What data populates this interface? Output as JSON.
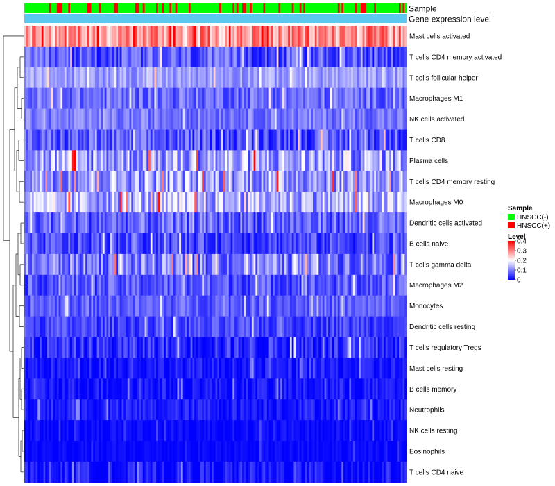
{
  "chart_data": {
    "type": "heatmap",
    "title": "",
    "annotations": [
      {
        "name": "Sample",
        "legend_title": "Sample",
        "levels": [
          {
            "label": "HNSCC(-)",
            "color": "#00FF00"
          },
          {
            "label": "HNSCC(+)",
            "color": "#FF0000"
          }
        ]
      },
      {
        "name": "Gene expression level",
        "color": "#5BC8F0"
      }
    ],
    "rows": [
      {
        "label": "Mast cells activated",
        "mean": 0.28,
        "spread": 0.08
      },
      {
        "label": "T cells CD4 memory activated",
        "mean": 0.06,
        "spread": 0.06
      },
      {
        "label": "T cells follicular helper",
        "mean": 0.12,
        "spread": 0.04
      },
      {
        "label": "Macrophages M1",
        "mean": 0.08,
        "spread": 0.05
      },
      {
        "label": "NK cells activated",
        "mean": 0.09,
        "spread": 0.04
      },
      {
        "label": "T cells CD8",
        "mean": 0.06,
        "spread": 0.06
      },
      {
        "label": "Plasma cells",
        "mean": 0.12,
        "spread": 0.09
      },
      {
        "label": "T cells CD4 memory resting",
        "mean": 0.12,
        "spread": 0.08
      },
      {
        "label": "Macrophages M0",
        "mean": 0.13,
        "spread": 0.08
      },
      {
        "label": "Dendritic cells activated",
        "mean": 0.07,
        "spread": 0.06
      },
      {
        "label": "B cells naive",
        "mean": 0.05,
        "spread": 0.05
      },
      {
        "label": "T cells gamma delta",
        "mean": 0.09,
        "spread": 0.07
      },
      {
        "label": "Macrophages M2",
        "mean": 0.06,
        "spread": 0.05
      },
      {
        "label": "Monocytes",
        "mean": 0.07,
        "spread": 0.04
      },
      {
        "label": "Dendritic cells resting",
        "mean": 0.05,
        "spread": 0.04
      },
      {
        "label": "T cells regulatory  Tregs",
        "mean": 0.03,
        "spread": 0.05
      },
      {
        "label": "Mast cells resting",
        "mean": 0.015,
        "spread": 0.03
      },
      {
        "label": "B cells memory",
        "mean": 0.015,
        "spread": 0.03
      },
      {
        "label": "Neutrophils",
        "mean": 0.02,
        "spread": 0.03
      },
      {
        "label": "NK cells resting",
        "mean": 0.005,
        "spread": 0.02
      },
      {
        "label": "Eosinophils",
        "mean": 0.004,
        "spread": 0.015
      },
      {
        "label": "T cells CD4 naive",
        "mean": 0.01,
        "spread": 0.04
      }
    ],
    "n_samples": 200,
    "color_scale": {
      "legend_title": "Level",
      "min": 0,
      "max": 0.4,
      "ticks": [
        "0.4",
        "0.3",
        "0.2",
        "0.1",
        "0"
      ],
      "tick_values": [
        0.4,
        0.3,
        0.2,
        0.1,
        0
      ],
      "low_color": "#0000FF",
      "mid_color": "#FFFFFF",
      "high_color": "#FF0000",
      "mid_value": 0.2
    },
    "row_dendrogram": true,
    "column_dendrogram": false
  }
}
